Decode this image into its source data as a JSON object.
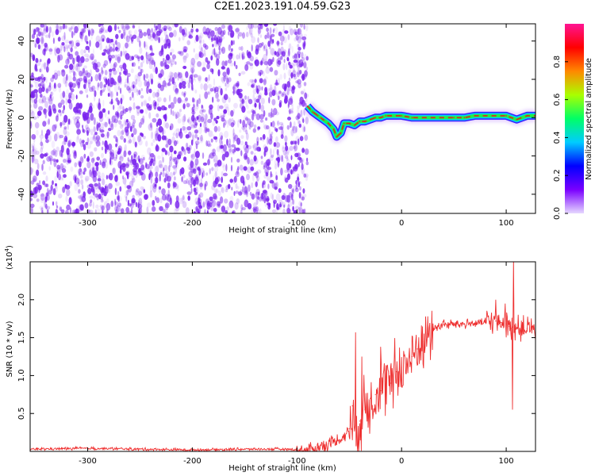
{
  "page": {
    "title": "C2E1.2023.191.04.59.G23"
  },
  "colors": {
    "spectrogram_scatter": "#7a22ee",
    "trace_core": "#dd2222",
    "trace_band": "#22ee44",
    "snr_line": "#ee3030",
    "colorbar_stops": [
      "#e6d8ff",
      "#7a00ff",
      "#0000ff",
      "#00ccff",
      "#00ff66",
      "#aaff00",
      "#ff8800",
      "#ff0000",
      "#ff1493"
    ]
  },
  "chart_data": [
    {
      "type": "heatmap",
      "title": "",
      "xlabel": "Height of straight line (km)",
      "ylabel": "Frequency (Hz)",
      "xlim": [
        -355,
        128
      ],
      "ylim": [
        -50,
        49
      ],
      "xticks": [
        "-300",
        "-200",
        "-100",
        "0",
        "100"
      ],
      "yticks": [
        "40",
        "20",
        "0",
        "-20",
        "-40"
      ],
      "noise_region": {
        "x_range": [
          -355,
          -90
        ],
        "description_value": "broadband noise, low amplitude"
      },
      "signal_trace": {
        "x": [
          -90,
          -85,
          -80,
          -75,
          -70,
          -65,
          -62,
          -58,
          -55,
          -50,
          -45,
          -40,
          -35,
          -30,
          -25,
          -20,
          -15,
          -10,
          -5,
          0,
          10,
          20,
          30,
          40,
          50,
          60,
          70,
          80,
          90,
          100,
          110,
          120,
          128
        ],
        "y": [
          6,
          3,
          1,
          -1,
          -3,
          -6,
          -10,
          -8,
          -3,
          -3,
          -4,
          -2,
          -2,
          -1,
          0,
          0,
          1,
          1,
          1,
          1,
          0,
          0,
          0,
          0,
          0,
          0,
          1,
          1,
          1,
          1,
          -1,
          1,
          1
        ]
      },
      "colorbar": {
        "label": "Normalized spectral amplitude",
        "range": [
          0,
          1
        ],
        "ticks": [
          "0.0",
          "0.2",
          "0.4",
          "0.6",
          "0.8"
        ]
      },
      "grid": false,
      "legend": "none"
    },
    {
      "type": "line",
      "title": "",
      "xlabel": "Height of straight line (km)",
      "ylabel": "SNR (10 * v/v)",
      "multiplier": "(x10",
      "multiplier_exp": "4",
      "multiplier_close": ")",
      "xlim": [
        -355,
        128
      ],
      "ylim": [
        0,
        2.5
      ],
      "xticks": [
        "-300",
        "-200",
        "-100",
        "0",
        "100"
      ],
      "yticks": [
        "2.0",
        "1.5",
        "1.0",
        "0.5"
      ],
      "series": [
        {
          "x": [
            -355,
            -300,
            -250,
            -200,
            -150,
            -110,
            -100,
            -95,
            -90,
            -80,
            -70,
            -60,
            -55,
            -50,
            -47,
            -45,
            -43,
            -40,
            -35,
            -30,
            -25,
            -20,
            -15,
            -10,
            -5,
            0,
            5,
            10,
            15,
            20,
            25,
            30,
            40,
            50,
            60,
            70,
            80,
            90,
            95,
            100,
            103,
            105,
            106,
            108,
            110,
            115,
            120,
            128
          ],
          "y": [
            0.03,
            0.04,
            0.03,
            0.02,
            0.03,
            0.03,
            0.02,
            0.01,
            0.01,
            0.05,
            0.1,
            0.15,
            0.2,
            0.3,
            0.6,
            0.3,
            0.2,
            0.4,
            0.55,
            0.7,
            0.75,
            0.8,
            0.85,
            0.9,
            1.05,
            1.1,
            1.15,
            1.25,
            1.35,
            1.45,
            1.55,
            1.62,
            1.67,
            1.68,
            1.68,
            1.69,
            1.7,
            1.72,
            1.7,
            1.68,
            1.65,
            1.62,
            1.64,
            1.64,
            1.63,
            1.62,
            1.62,
            1.62
          ],
          "spikes": [
            {
              "x": -44,
              "y": 1.57
            },
            {
              "x": -38,
              "y": 1.25
            },
            {
              "x": -20,
              "y": 1.38
            },
            {
              "x": 10,
              "y": 1.52
            },
            {
              "x": 90,
              "y": 2.0
            },
            {
              "x": 99,
              "y": 1.95
            },
            {
              "x": 106,
              "y": 0.55
            },
            {
              "x": 107,
              "y": 2.55
            }
          ]
        }
      ],
      "grid": false,
      "legend": "none"
    }
  ]
}
